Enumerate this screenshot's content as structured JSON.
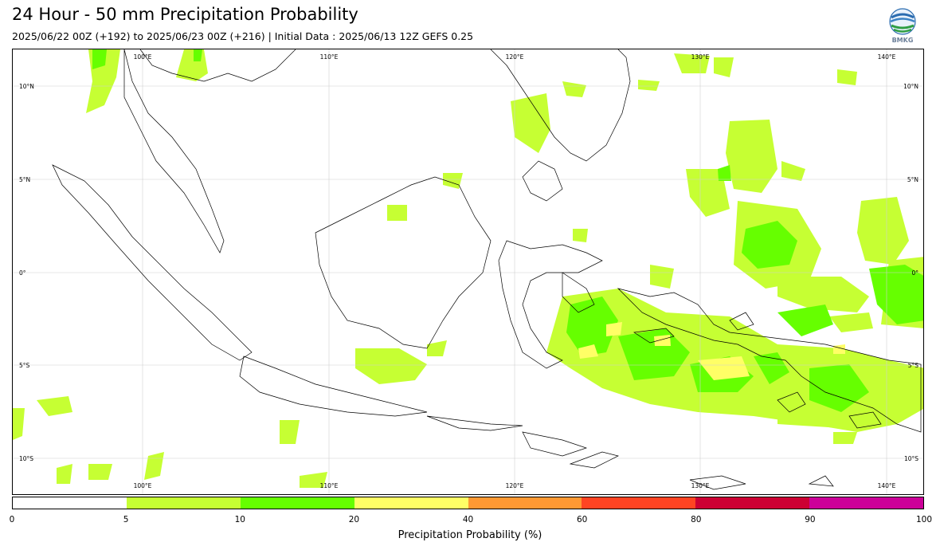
{
  "header": {
    "title": "24 Hour - 50 mm Precipitation Probability",
    "subtitle": "2025/06/22 00Z (+192) to 2025/06/23 00Z (+216) | Initial Data : 2025/06/13 12Z GEFS 0.25",
    "logo_text": "BMKG"
  },
  "map": {
    "lon_labels": [
      "100°E",
      "110°E",
      "120°E",
      "130°E",
      "140°E"
    ],
    "lat_labels": [
      "10°N",
      "5°N",
      "0°",
      "5°S",
      "10°S"
    ],
    "extent": {
      "lon": [
        95,
        144
      ],
      "lat": [
        -12,
        11.5
      ]
    },
    "gridlines": true
  },
  "legend": {
    "label": "Precipitation Probability (%)",
    "ticks": [
      "0",
      "5",
      "10",
      "20",
      "40",
      "60",
      "80",
      "90",
      "100"
    ],
    "colors": [
      "#ffffff",
      "#c6ff33",
      "#66ff00",
      "#ffff66",
      "#ff9933",
      "#ff4422",
      "#cc0033",
      "#cc0099"
    ]
  }
}
